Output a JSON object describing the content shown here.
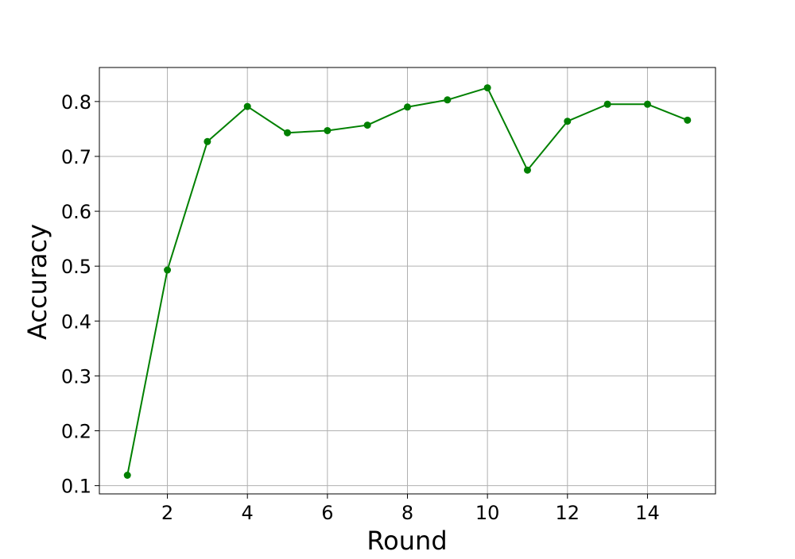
{
  "chart_data": {
    "type": "line",
    "title": "",
    "xlabel": "Round",
    "ylabel": "Accuracy",
    "xlim": [
      0.3,
      15.7
    ],
    "ylim": [
      0.085,
      0.862
    ],
    "xticks": [
      2,
      4,
      6,
      8,
      10,
      12,
      14
    ],
    "yticks": [
      0.1,
      0.2,
      0.3,
      0.4,
      0.5,
      0.6,
      0.7,
      0.8
    ],
    "xtick_labels": [
      "2",
      "4",
      "6",
      "8",
      "10",
      "12",
      "14"
    ],
    "ytick_labels": [
      "0.1",
      "0.2",
      "0.3",
      "0.4",
      "0.5",
      "0.6",
      "0.7",
      "0.8"
    ],
    "grid": true,
    "legend": "none",
    "series": [
      {
        "color": "#008000",
        "marker": "circle",
        "x": [
          1,
          2,
          3,
          4,
          5,
          6,
          7,
          8,
          9,
          10,
          11,
          12,
          13,
          14,
          15
        ],
        "y": [
          0.119,
          0.493,
          0.727,
          0.791,
          0.743,
          0.747,
          0.757,
          0.79,
          0.803,
          0.825,
          0.675,
          0.764,
          0.795,
          0.795,
          0.766
        ]
      }
    ],
    "colors": {
      "grid": "#b0b0b0",
      "axes": "#000000",
      "series": "#008000"
    }
  }
}
